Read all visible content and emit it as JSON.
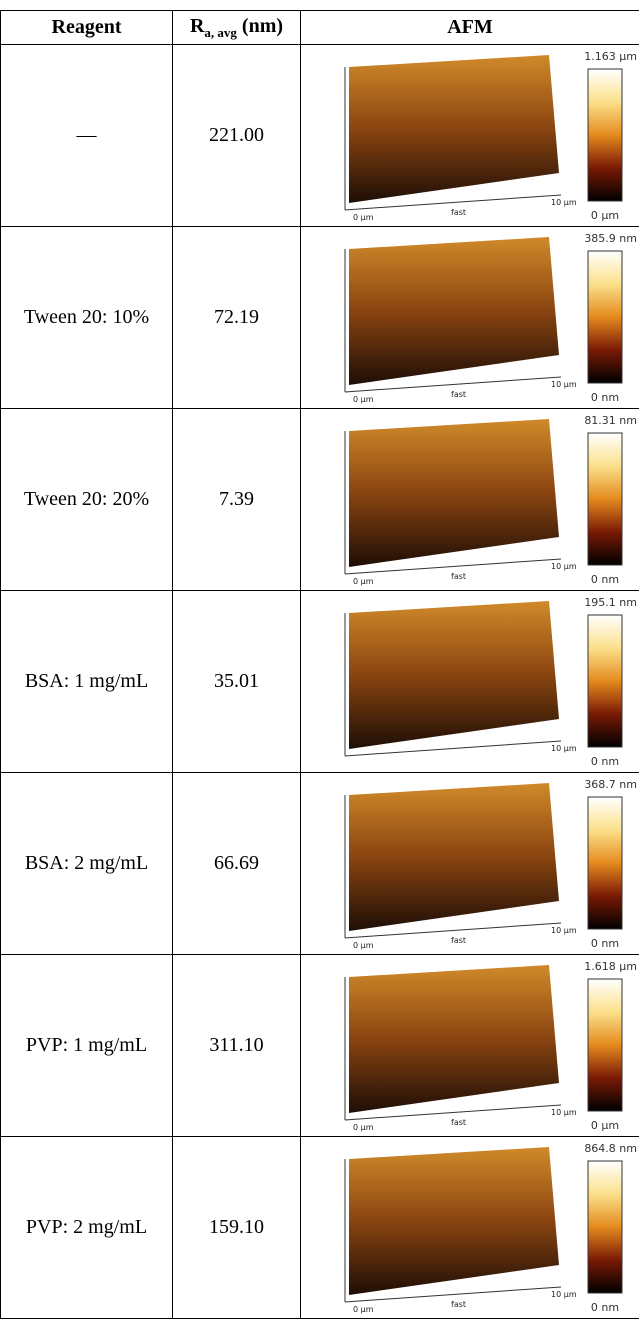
{
  "header": {
    "reagent": "Reagent",
    "ra": {
      "symbol": "R",
      "subscript": "a, avg",
      "unit": "(nm)"
    },
    "afm": "AFM"
  },
  "rows": [
    {
      "reagent": "—",
      "ra": "221.00",
      "afm": {
        "max": "1.163 µm",
        "min": "0 µm",
        "axis": {
          "start": "0 µm",
          "mid": "fast",
          "end": "10 µm"
        }
      }
    },
    {
      "reagent": "Tween 20: 10%",
      "ra": "72.19",
      "afm": {
        "max": "385.9 nm",
        "min": "0 nm",
        "axis": {
          "start": "0 µm",
          "mid": "fast",
          "end": "10 µm"
        }
      }
    },
    {
      "reagent": "Tween 20: 20%",
      "ra": "7.39",
      "afm": {
        "max": "81.31 nm",
        "min": "0 nm",
        "axis": {
          "start": "0 µm",
          "mid": "fast",
          "end": "10 µm"
        }
      }
    },
    {
      "reagent": "BSA: 1 mg/mL",
      "ra": "35.01",
      "afm": {
        "max": "195.1 nm",
        "min": "0 nm",
        "axis": {
          "end": "10 µm"
        }
      }
    },
    {
      "reagent": "BSA: 2 mg/mL",
      "ra": "66.69",
      "afm": {
        "max": "368.7 nm",
        "min": "0 nm",
        "axis": {
          "start": "0 µm",
          "mid": "fast",
          "end": "10 µm"
        }
      }
    },
    {
      "reagent": "PVP: 1 mg/mL",
      "ra": "311.10",
      "afm": {
        "max": "1.618 µm",
        "min": "0 µm",
        "axis": {
          "start": "0 µm",
          "mid": "fast",
          "end": "10 µm"
        }
      }
    },
    {
      "reagent": "PVP: 2 mg/mL",
      "ra": "159.10",
      "afm": {
        "max": "864.8 nm",
        "min": "0 nm",
        "axis": {
          "start": "0 µm",
          "mid": "fast",
          "end": "10 µm"
        }
      }
    }
  ]
}
